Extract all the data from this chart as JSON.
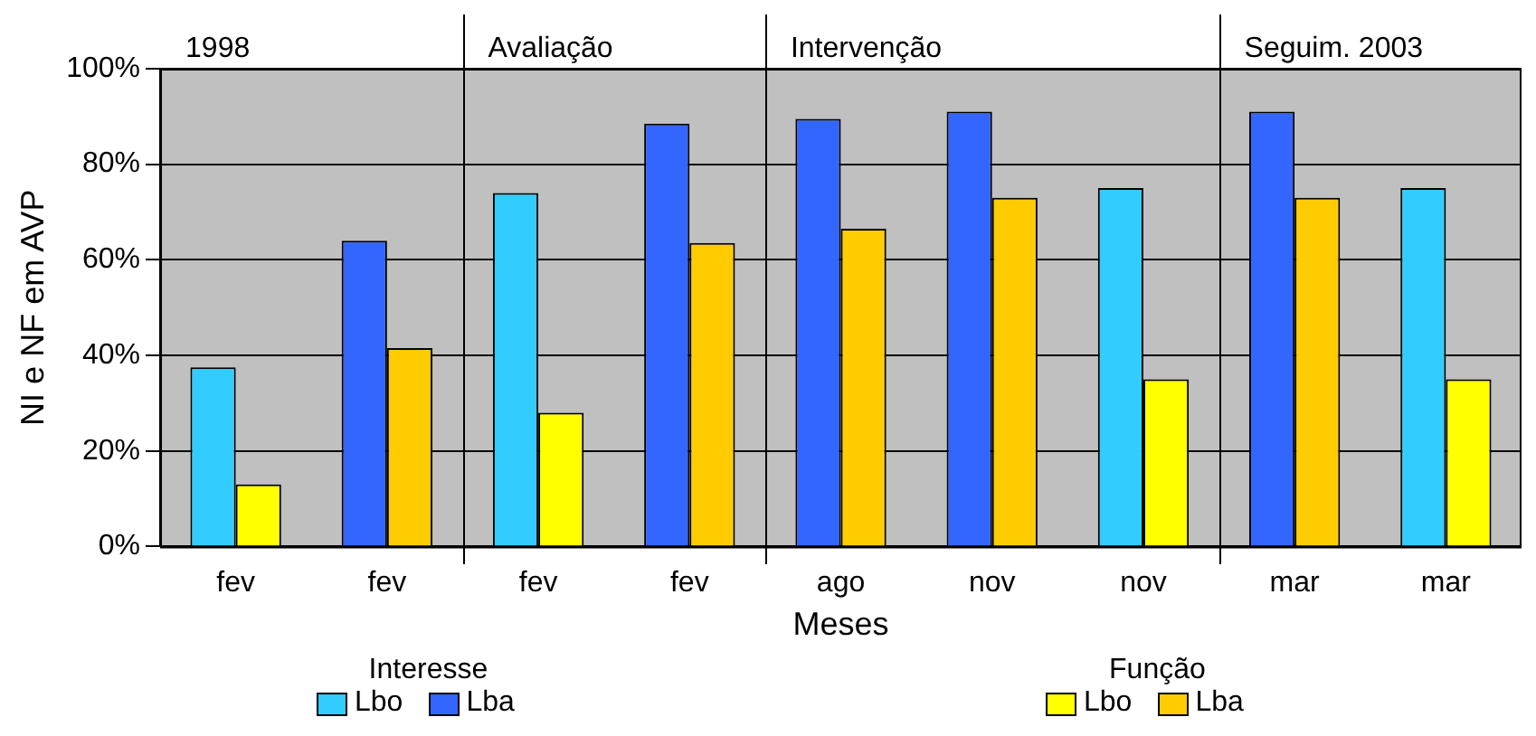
{
  "chart_data": {
    "type": "bar",
    "xlabel": "Meses",
    "ylabel": "NI e NF em AVP",
    "categories": [
      "fev",
      "fev",
      "fev",
      "fev",
      "ago",
      "nov",
      "nov",
      "mar",
      "mar"
    ],
    "series": [
      {
        "name": "Lbo",
        "color": "#33ccff",
        "values": [
          37.5,
          null,
          74,
          null,
          null,
          null,
          75,
          null,
          75
        ]
      },
      {
        "name": "Lba",
        "color": "#3366ff",
        "values": [
          null,
          64,
          null,
          88.5,
          89.5,
          91,
          null,
          91,
          null
        ]
      },
      {
        "name": "Lbo",
        "color": "#ffff00",
        "values": [
          13,
          null,
          28,
          null,
          null,
          null,
          35,
          null,
          35
        ]
      },
      {
        "name": "Lba",
        "color": "#ffcc00",
        "values": [
          null,
          41.5,
          null,
          63.5,
          66.5,
          73,
          null,
          73,
          null
        ]
      }
    ],
    "ylim": [
      0,
      100
    ],
    "yticks": [
      {
        "value": 0,
        "label": "0%"
      },
      {
        "value": 20,
        "label": "20%"
      },
      {
        "value": 40,
        "label": "40%"
      },
      {
        "value": 60,
        "label": "60%"
      },
      {
        "value": 80,
        "label": "80%"
      },
      {
        "value": 100,
        "label": "100%"
      }
    ],
    "grid": "y",
    "legend": "bottom",
    "annotations": [
      "1998",
      "Avaliação",
      "Intervenção",
      "Seguim. 2003",
      "Interesse",
      "Função"
    ]
  }
}
